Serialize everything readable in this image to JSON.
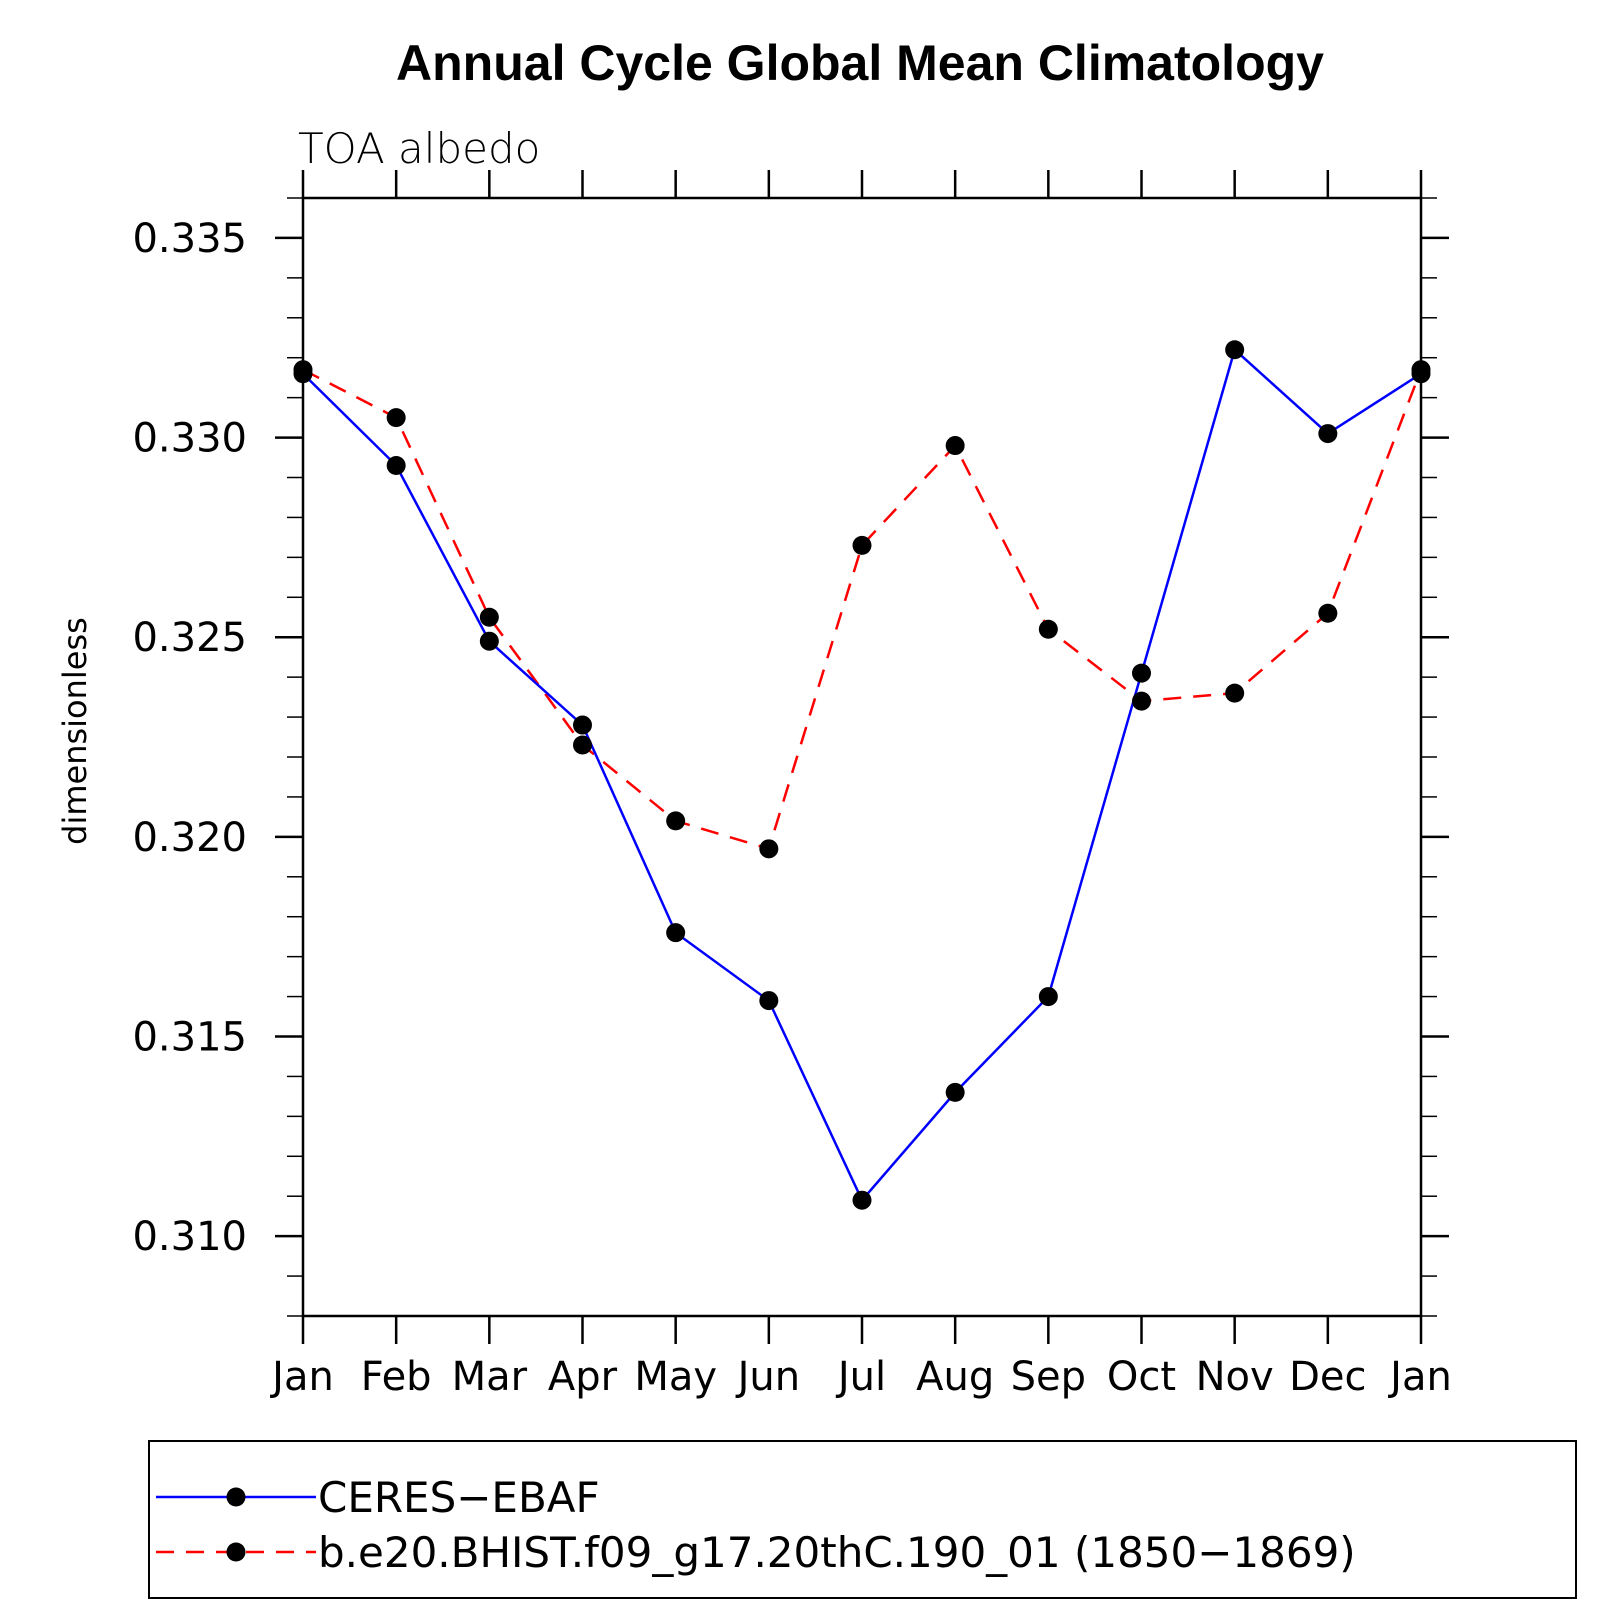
{
  "chart_data": {
    "type": "line",
    "title": "Annual Cycle Global Mean Climatology",
    "subtitle": "TOA albedo",
    "ylabel": "dimensionless",
    "xlabel": "",
    "categories": [
      "Jan",
      "Feb",
      "Mar",
      "Apr",
      "May",
      "Jun",
      "Jul",
      "Aug",
      "Sep",
      "Oct",
      "Nov",
      "Dec",
      "Jan"
    ],
    "ylim": [
      0.308,
      0.336
    ],
    "yticks": [
      "0.310",
      "0.315",
      "0.320",
      "0.325",
      "0.330",
      "0.335"
    ],
    "ytick_values": [
      0.31,
      0.315,
      0.32,
      0.325,
      0.33,
      0.335
    ],
    "grid": false,
    "legend_position": "bottom",
    "series": [
      {
        "name": "CERES−EBAF",
        "color": "#0000ff",
        "line_style": "solid",
        "marker": "filled-circle",
        "values": [
          0.3316,
          0.3293,
          0.3249,
          0.3228,
          0.3176,
          0.3159,
          0.3109,
          0.3136,
          0.316,
          0.3241,
          0.3322,
          0.3301,
          0.3316
        ]
      },
      {
        "name": "b.e20.BHIST.f09_g17.20thC.190_01 (1850−1869)",
        "color": "#ff0000",
        "line_style": "dashed",
        "marker": "filled-circle",
        "values": [
          0.3317,
          0.3305,
          0.3255,
          0.3223,
          0.3204,
          0.3197,
          0.3273,
          0.3298,
          0.3252,
          0.3234,
          0.3236,
          0.3256,
          0.3317
        ]
      }
    ]
  }
}
